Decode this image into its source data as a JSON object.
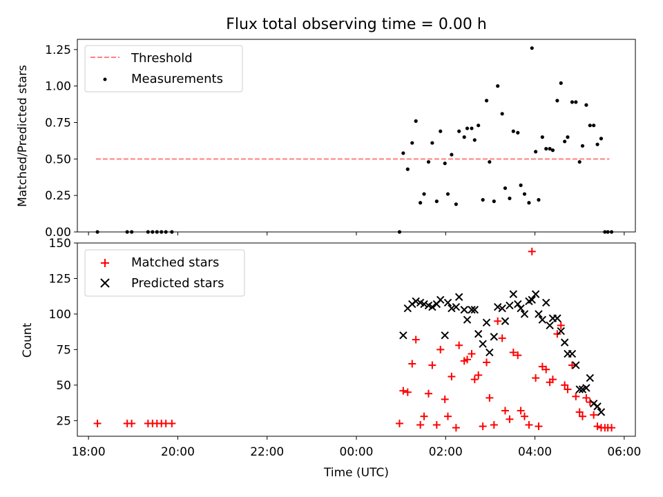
{
  "chart_data": [
    {
      "type": "scatter",
      "title": "Flux total observing time = 0.00 h",
      "xlabel": "",
      "ylabel": "Matched/Predicted stars",
      "xlim": [
        "17:45",
        "06:15"
      ],
      "ylim": [
        0,
        1.32
      ],
      "yticks": [
        0.0,
        0.25,
        0.5,
        0.75,
        1.0,
        1.25
      ],
      "ytick_labels": [
        "0.00",
        "0.25",
        "0.50",
        "0.75",
        "1.00",
        "1.25"
      ],
      "grid": false,
      "legend_position": "top-left",
      "threshold": {
        "name": "Threshold",
        "value": 0.5,
        "x_start": "18:10",
        "x_end": "05:40",
        "color": "#ff7f7f",
        "style": "dashed"
      },
      "measurements": {
        "name": "Measurements",
        "color": "#000000",
        "points": [
          [
            "18:12",
            0.0
          ],
          [
            "18:52",
            0.0
          ],
          [
            "18:58",
            0.0
          ],
          [
            "19:20",
            0.0
          ],
          [
            "19:26",
            0.0
          ],
          [
            "19:32",
            0.0
          ],
          [
            "19:38",
            0.0
          ],
          [
            "19:44",
            0.0
          ],
          [
            "19:52",
            0.0
          ],
          [
            "00:58",
            0.0
          ],
          [
            "01:03",
            0.54
          ],
          [
            "01:09",
            0.43
          ],
          [
            "01:15",
            0.61
          ],
          [
            "01:20",
            0.76
          ],
          [
            "01:26",
            0.2
          ],
          [
            "01:31",
            0.26
          ],
          [
            "01:37",
            0.48
          ],
          [
            "01:42",
            0.61
          ],
          [
            "01:48",
            0.21
          ],
          [
            "01:53",
            0.69
          ],
          [
            "01:59",
            0.47
          ],
          [
            "02:03",
            0.26
          ],
          [
            "02:08",
            0.53
          ],
          [
            "02:14",
            0.19
          ],
          [
            "02:18",
            0.69
          ],
          [
            "02:25",
            0.65
          ],
          [
            "02:29",
            0.71
          ],
          [
            "02:35",
            0.71
          ],
          [
            "02:39",
            0.63
          ],
          [
            "02:44",
            0.73
          ],
          [
            "02:50",
            0.22
          ],
          [
            "02:55",
            0.9
          ],
          [
            "02:59",
            0.48
          ],
          [
            "03:05",
            0.21
          ],
          [
            "03:10",
            1.0
          ],
          [
            "03:16",
            0.81
          ],
          [
            "03:20",
            0.3
          ],
          [
            "03:26",
            0.23
          ],
          [
            "03:31",
            0.69
          ],
          [
            "03:37",
            0.68
          ],
          [
            "03:41",
            0.32
          ],
          [
            "03:46",
            0.26
          ],
          [
            "03:52",
            0.2
          ],
          [
            "03:56",
            1.26
          ],
          [
            "04:01",
            0.55
          ],
          [
            "04:05",
            0.22
          ],
          [
            "04:10",
            0.65
          ],
          [
            "04:15",
            0.57
          ],
          [
            "04:20",
            0.57
          ],
          [
            "04:24",
            0.56
          ],
          [
            "04:30",
            0.9
          ],
          [
            "04:35",
            1.02
          ],
          [
            "04:40",
            0.62
          ],
          [
            "04:44",
            0.65
          ],
          [
            "04:50",
            0.89
          ],
          [
            "04:55",
            0.89
          ],
          [
            "05:00",
            0.48
          ],
          [
            "05:04",
            0.59
          ],
          [
            "05:09",
            0.87
          ],
          [
            "05:14",
            0.73
          ],
          [
            "05:19",
            0.73
          ],
          [
            "05:24",
            0.6
          ],
          [
            "05:29",
            0.64
          ],
          [
            "05:34",
            0.0
          ],
          [
            "05:38",
            0.0
          ],
          [
            "05:43",
            0.0
          ]
        ]
      }
    },
    {
      "type": "scatter",
      "title": "",
      "xlabel": "Time (UTC)",
      "ylabel": "Count",
      "xlim": [
        "17:45",
        "06:15"
      ],
      "ylim": [
        14,
        150
      ],
      "yticks": [
        25,
        50,
        75,
        100,
        125,
        150
      ],
      "ytick_labels": [
        "25",
        "50",
        "75",
        "100",
        "125",
        "150"
      ],
      "xticks": [
        "18:00",
        "20:00",
        "22:00",
        "00:00",
        "02:00",
        "04:00",
        "06:00"
      ],
      "grid": false,
      "legend_position": "top-left",
      "series": [
        {
          "name": "Matched stars",
          "marker": "plus",
          "color": "#ff0000",
          "points": [
            [
              "18:12",
              23
            ],
            [
              "18:52",
              23
            ],
            [
              "18:58",
              23
            ],
            [
              "19:20",
              23
            ],
            [
              "19:26",
              23
            ],
            [
              "19:32",
              23
            ],
            [
              "19:38",
              23
            ],
            [
              "19:44",
              23
            ],
            [
              "19:52",
              23
            ],
            [
              "00:58",
              23
            ],
            [
              "01:03",
              46
            ],
            [
              "01:09",
              45
            ],
            [
              "01:15",
              65
            ],
            [
              "01:20",
              82
            ],
            [
              "01:26",
              22
            ],
            [
              "01:31",
              28
            ],
            [
              "01:37",
              44
            ],
            [
              "01:42",
              64
            ],
            [
              "01:48",
              22
            ],
            [
              "01:53",
              75
            ],
            [
              "01:59",
              40
            ],
            [
              "02:03",
              28
            ],
            [
              "02:08",
              56
            ],
            [
              "02:14",
              20
            ],
            [
              "02:18",
              78
            ],
            [
              "02:25",
              67
            ],
            [
              "02:29",
              68
            ],
            [
              "02:35",
              72
            ],
            [
              "02:39",
              54
            ],
            [
              "02:44",
              57
            ],
            [
              "02:50",
              21
            ],
            [
              "02:55",
              66
            ],
            [
              "02:59",
              41
            ],
            [
              "03:05",
              22
            ],
            [
              "03:10",
              95
            ],
            [
              "03:16",
              83
            ],
            [
              "03:20",
              32
            ],
            [
              "03:26",
              26
            ],
            [
              "03:31",
              73
            ],
            [
              "03:37",
              71
            ],
            [
              "03:41",
              32
            ],
            [
              "03:46",
              28
            ],
            [
              "03:52",
              22
            ],
            [
              "03:56",
              144
            ],
            [
              "04:01",
              55
            ],
            [
              "04:05",
              21
            ],
            [
              "04:10",
              63
            ],
            [
              "04:15",
              61
            ],
            [
              "04:20",
              52
            ],
            [
              "04:24",
              54
            ],
            [
              "04:30",
              86
            ],
            [
              "04:35",
              92
            ],
            [
              "04:40",
              50
            ],
            [
              "04:44",
              47
            ],
            [
              "04:50",
              64
            ],
            [
              "04:55",
              42
            ],
            [
              "05:00",
              31
            ],
            [
              "05:04",
              28
            ],
            [
              "05:09",
              41
            ],
            [
              "05:14",
              38
            ],
            [
              "05:19",
              29
            ],
            [
              "05:24",
              21
            ],
            [
              "05:29",
              20
            ],
            [
              "05:34",
              20
            ],
            [
              "05:38",
              20
            ],
            [
              "05:43",
              20
            ]
          ]
        },
        {
          "name": "Predicted stars",
          "marker": "x",
          "color": "#000000",
          "points": [
            [
              "01:03",
              85
            ],
            [
              "01:09",
              104
            ],
            [
              "01:15",
              107
            ],
            [
              "01:20",
              109
            ],
            [
              "01:26",
              108
            ],
            [
              "01:31",
              107
            ],
            [
              "01:37",
              106
            ],
            [
              "01:42",
              105
            ],
            [
              "01:48",
              107
            ],
            [
              "01:53",
              110
            ],
            [
              "01:59",
              85
            ],
            [
              "02:03",
              108
            ],
            [
              "02:08",
              104
            ],
            [
              "02:14",
              105
            ],
            [
              "02:18",
              112
            ],
            [
              "02:25",
              103
            ],
            [
              "02:29",
              96
            ],
            [
              "02:35",
              103
            ],
            [
              "02:39",
              103
            ],
            [
              "02:44",
              86
            ],
            [
              "02:50",
              79
            ],
            [
              "02:55",
              94
            ],
            [
              "02:59",
              73
            ],
            [
              "03:05",
              84
            ],
            [
              "03:10",
              105
            ],
            [
              "03:16",
              104
            ],
            [
              "03:20",
              95
            ],
            [
              "03:26",
              106
            ],
            [
              "03:31",
              114
            ],
            [
              "03:37",
              107
            ],
            [
              "03:41",
              104
            ],
            [
              "03:46",
              100
            ],
            [
              "03:52",
              109
            ],
            [
              "03:56",
              110
            ],
            [
              "04:01",
              114
            ],
            [
              "04:05",
              100
            ],
            [
              "04:10",
              96
            ],
            [
              "04:15",
              108
            ],
            [
              "04:20",
              92
            ],
            [
              "04:24",
              97
            ],
            [
              "04:30",
              97
            ],
            [
              "04:35",
              88
            ],
            [
              "04:40",
              80
            ],
            [
              "04:44",
              72
            ],
            [
              "04:50",
              72
            ],
            [
              "04:55",
              64
            ],
            [
              "05:00",
              47
            ],
            [
              "05:04",
              47
            ],
            [
              "05:09",
              48
            ],
            [
              "05:14",
              55
            ],
            [
              "05:19",
              37
            ],
            [
              "05:24",
              35
            ],
            [
              "05:29",
              31
            ]
          ]
        }
      ]
    }
  ]
}
